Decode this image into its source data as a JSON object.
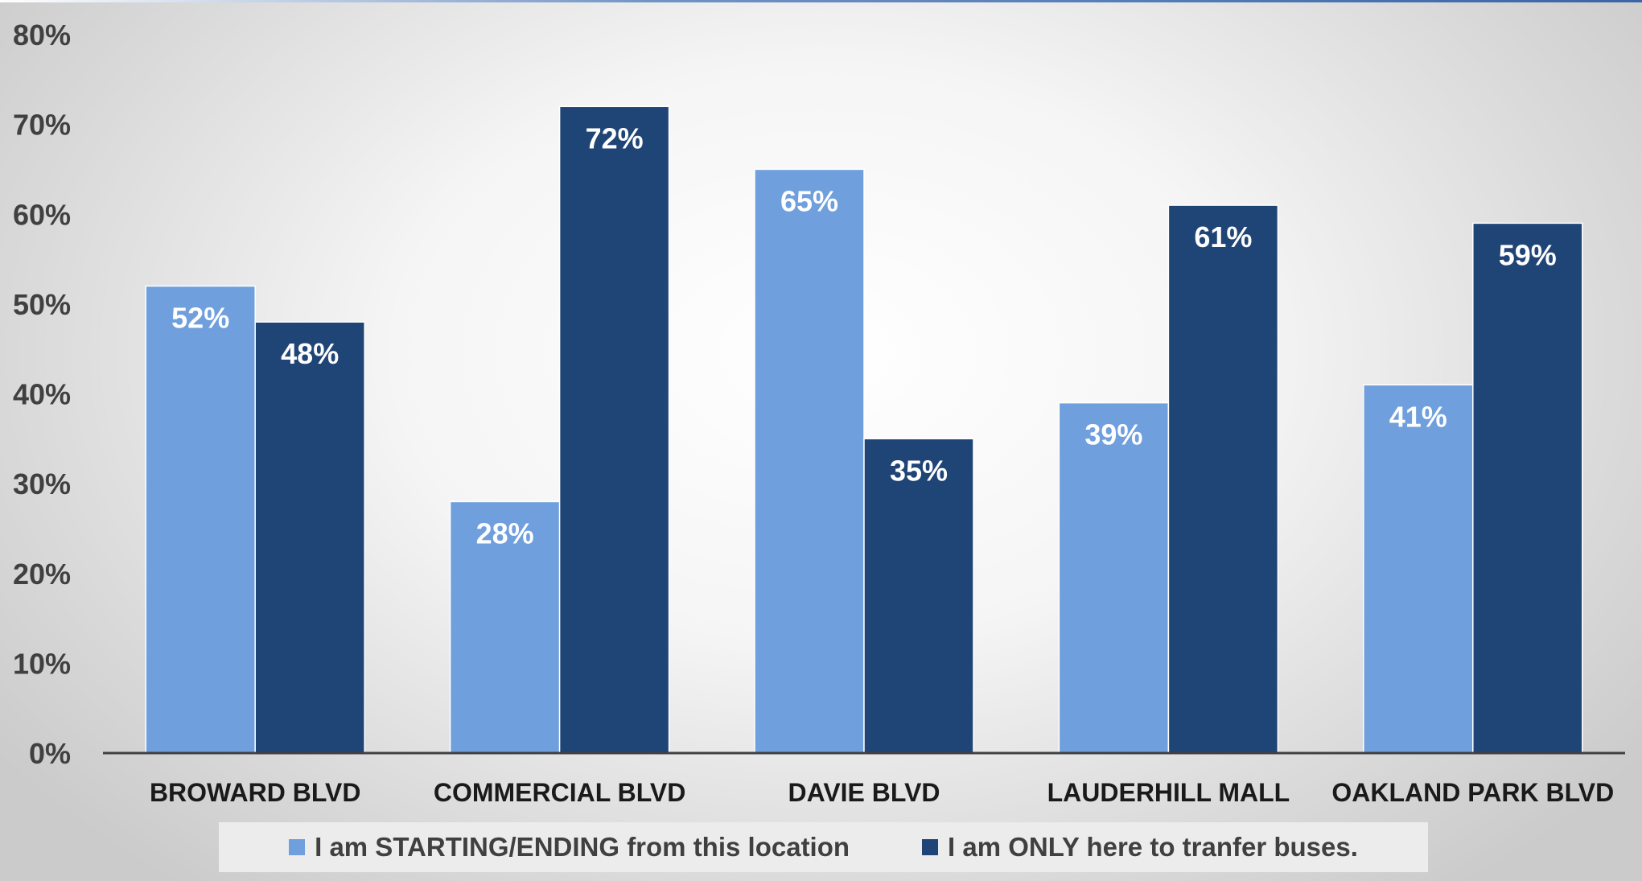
{
  "colors": {
    "series_light": "#6f9fdd",
    "series_dark": "#1f4476",
    "axis": "#404040"
  },
  "chart_data": {
    "type": "bar",
    "title": "",
    "xlabel": "",
    "ylabel": "",
    "ylim": [
      0,
      80
    ],
    "y_ticks": [
      0,
      10,
      20,
      30,
      40,
      50,
      60,
      70,
      80
    ],
    "y_tick_labels": [
      "0%",
      "10%",
      "20%",
      "30%",
      "40%",
      "50%",
      "60%",
      "70%",
      "80%"
    ],
    "grid": false,
    "legend_position": "bottom",
    "categories": [
      "BROWARD BLVD",
      "COMMERCIAL BLVD",
      "DAVIE BLVD",
      "LAUDERHILL MALL",
      "OAKLAND PARK BLVD"
    ],
    "series": [
      {
        "name": "I am STARTING/ENDING from this location",
        "color": "#6f9fdd",
        "values": [
          52,
          28,
          65,
          39,
          41
        ],
        "labels": [
          "52%",
          "28%",
          "65%",
          "39%",
          "41%"
        ]
      },
      {
        "name": "I am ONLY here to tranfer buses.",
        "color": "#1f4476",
        "values": [
          48,
          72,
          35,
          61,
          59
        ],
        "labels": [
          "48%",
          "72%",
          "35%",
          "61%",
          "59%"
        ]
      }
    ]
  }
}
